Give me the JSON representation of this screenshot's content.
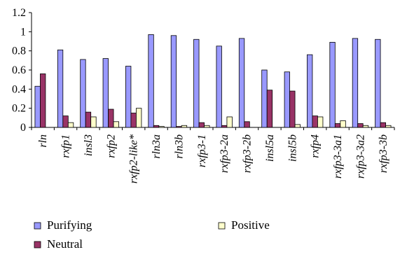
{
  "chart_data": {
    "type": "bar",
    "categories": [
      "rln",
      "rxfp1",
      "insl3",
      "rxfp2",
      "rxfp2-like*",
      "rln3a",
      "rln3b",
      "rxfp3-1",
      "rxfp3-2a",
      "rxfp3-2b",
      "insl5a",
      "insl5b",
      "rxfp4",
      "rxfp3-3a1",
      "rxfp3-3a2",
      "rxfp3-3b"
    ],
    "series": [
      {
        "name": "Purifying",
        "color": "#9999ff",
        "values": [
          0.43,
          0.81,
          0.71,
          0.72,
          0.64,
          0.97,
          0.96,
          0.92,
          0.85,
          0.93,
          0.6,
          0.58,
          0.76,
          0.89,
          0.93,
          0.92
        ]
      },
      {
        "name": "Neutral",
        "color": "#993366",
        "values": [
          0.56,
          0.12,
          0.16,
          0.19,
          0.15,
          0.02,
          0.01,
          0.05,
          0.02,
          0.06,
          0.39,
          0.38,
          0.12,
          0.04,
          0.04,
          0.05
        ]
      },
      {
        "name": "Positive",
        "color": "#ffffcc",
        "values": [
          0.0,
          0.05,
          0.11,
          0.06,
          0.2,
          0.01,
          0.02,
          0.02,
          0.11,
          0.0,
          0.0,
          0.03,
          0.11,
          0.07,
          0.02,
          0.02
        ]
      }
    ],
    "yticks": [
      "0",
      "0.2",
      "0.4",
      "0.6",
      "0.8",
      "1",
      "1.2"
    ],
    "ylim": [
      0,
      1.2
    ],
    "legend_position": "bottom",
    "grid": false
  }
}
